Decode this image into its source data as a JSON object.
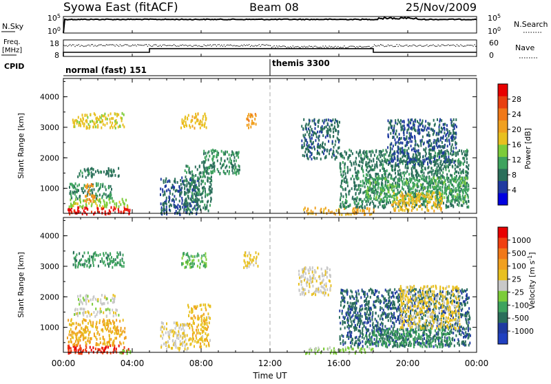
{
  "header": {
    "station": "Syowa East (fitACF)",
    "beam": "Beam 08",
    "date": "25/Nov/2009"
  },
  "status_panels": {
    "nsky_label": "N.Sky",
    "nsky_ticks": [
      "10^5",
      "10^0"
    ],
    "nsearch_label": "N.Search",
    "nsearch_ticks": [
      "10^5",
      "10^0"
    ],
    "freq_label_line1": "Freq.",
    "freq_label_line2": "[MHz]",
    "freq_ticks": [
      "18",
      "8"
    ],
    "nave_label": "Nave",
    "nave_ticks": [
      "60",
      "0"
    ],
    "cpid_label": "CPID",
    "cpid_segments": [
      {
        "label": "normal (fast) 151",
        "start_hour": 0,
        "end_hour": 12
      },
      {
        "label": "themis 3300",
        "start_hour": 12,
        "end_hour": 24
      }
    ],
    "freq_steps": [
      {
        "start_hour": 0,
        "end_hour": 5,
        "mhz": 10.5
      },
      {
        "start_hour": 5,
        "end_hour": 18,
        "mhz": 12.7
      },
      {
        "start_hour": 18,
        "end_hour": 24,
        "mhz": 10.5
      }
    ]
  },
  "power_colorbar": {
    "label": "Power [dB]",
    "ticks": [
      "28",
      "24",
      "20",
      "16",
      "12",
      "8",
      "4"
    ],
    "colors": [
      "#0000e0",
      "#1f3aa0",
      "#2a6e5a",
      "#3ea35e",
      "#7ccc3a",
      "#e8c020",
      "#f0a020",
      "#f07818",
      "#e84010",
      "#e80000"
    ]
  },
  "velocity_colorbar": {
    "label": "Velocity [m s^-1]",
    "ticks": [
      "1000",
      "500",
      "100",
      "25",
      "-25",
      "-100",
      "-500",
      "-1000"
    ],
    "colors": [
      "#e80000",
      "#f04010",
      "#f07818",
      "#f0a020",
      "#e8c020",
      "#c8c8c8",
      "#7ccc3a",
      "#3ea35e",
      "#2a6e5a",
      "#1f3aa0",
      "#2040c0"
    ]
  },
  "axes": {
    "ylabel": "Slant Range [km]",
    "yticks": [
      "4000",
      "3000",
      "2000",
      "1000"
    ],
    "xticks": [
      "00:00",
      "04:00",
      "08:00",
      "12:00",
      "16:00",
      "20:00",
      "00:00"
    ],
    "xlabel": "Time UT"
  },
  "chart_data": [
    {
      "type": "heatmap",
      "title": "",
      "ylabel": "Slant Range [km]",
      "xlabel": "",
      "variable": "Power [dB]",
      "xlim": [
        0,
        24
      ],
      "ylim": [
        180,
        4600
      ],
      "zlim": [
        0,
        30
      ],
      "mode_change_hour": 12,
      "patches": [
        {
          "x": [
            0.2,
            3.9
          ],
          "y": [
            180,
            420
          ],
          "value": 28
        },
        {
          "x": [
            0.3,
            3.8
          ],
          "y": [
            420,
            700
          ],
          "value": 14
        },
        {
          "x": [
            0.3,
            2.8
          ],
          "y": [
            700,
            1200
          ],
          "value": 9
        },
        {
          "x": [
            0.8,
            3.2
          ],
          "y": [
            1400,
            1700
          ],
          "value": 8
        },
        {
          "x": [
            1.2,
            1.8
          ],
          "y": [
            600,
            1200
          ],
          "value": 20
        },
        {
          "x": [
            0.5,
            3.5
          ],
          "y": [
            3000,
            3500
          ],
          "value": 16
        },
        {
          "x": [
            5.6,
            7.8
          ],
          "y": [
            180,
            1400
          ],
          "value": 6
        },
        {
          "x": [
            7.0,
            8.6
          ],
          "y": [
            300,
            1800
          ],
          "value": 8
        },
        {
          "x": [
            8.0,
            10.2
          ],
          "y": [
            1500,
            2300
          ],
          "value": 9
        },
        {
          "x": [
            6.8,
            8.3
          ],
          "y": [
            3000,
            3500
          ],
          "value": 17
        },
        {
          "x": [
            10.6,
            11.2
          ],
          "y": [
            3000,
            3500
          ],
          "value": 20
        },
        {
          "x": [
            13.8,
            16.0
          ],
          "y": [
            2000,
            3300
          ],
          "value": 7
        },
        {
          "x": [
            13.9,
            18.0
          ],
          "y": [
            180,
            400
          ],
          "value": 19
        },
        {
          "x": [
            16.0,
            23.5
          ],
          "y": [
            400,
            2300
          ],
          "value": 8
        },
        {
          "x": [
            17.5,
            23.5
          ],
          "y": [
            600,
            1400
          ],
          "value": 11
        },
        {
          "x": [
            18.8,
            22.8
          ],
          "y": [
            1800,
            3300
          ],
          "value": 6
        },
        {
          "x": [
            19.0,
            22.0
          ],
          "y": [
            300,
            900
          ],
          "value": 17
        }
      ]
    },
    {
      "type": "heatmap",
      "title": "",
      "ylabel": "Slant Range [km]",
      "xlabel": "Time UT",
      "variable": "Velocity [m s^-1]",
      "xlim": [
        0,
        24
      ],
      "ylim": [
        180,
        4600
      ],
      "zlim": [
        -1000,
        1000
      ],
      "mode_change_hour": 12,
      "patches": [
        {
          "x": [
            0.2,
            3.9
          ],
          "y": [
            180,
            450
          ],
          "value": -800
        },
        {
          "x": [
            0.2,
            3.6
          ],
          "y": [
            450,
            1300
          ],
          "value": -300
        },
        {
          "x": [
            0.6,
            3.2
          ],
          "y": [
            1400,
            1650
          ],
          "value": 0
        },
        {
          "x": [
            0.8,
            3.0
          ],
          "y": [
            1800,
            2100
          ],
          "value": 0
        },
        {
          "x": [
            0.5,
            3.5
          ],
          "y": [
            3000,
            3500
          ],
          "value": 400
        },
        {
          "x": [
            3.2,
            4.3
          ],
          "y": [
            180,
            300
          ],
          "value": 150
        },
        {
          "x": [
            5.6,
            7.2
          ],
          "y": [
            300,
            1200
          ],
          "value": -80
        },
        {
          "x": [
            7.2,
            8.5
          ],
          "y": [
            400,
            1800
          ],
          "value": -200
        },
        {
          "x": [
            6.8,
            8.3
          ],
          "y": [
            3000,
            3500
          ],
          "value": 300
        },
        {
          "x": [
            10.4,
            11.3
          ],
          "y": [
            3000,
            3500
          ],
          "value": -150
        },
        {
          "x": [
            13.6,
            15.5
          ],
          "y": [
            2100,
            3000
          ],
          "value": -60
        },
        {
          "x": [
            13.9,
            18.0
          ],
          "y": [
            180,
            380
          ],
          "value": 150
        },
        {
          "x": [
            16.0,
            23.6
          ],
          "y": [
            400,
            2300
          ],
          "value": 600
        },
        {
          "x": [
            17.5,
            22.5
          ],
          "y": [
            400,
            1000
          ],
          "value": 400
        },
        {
          "x": [
            19.5,
            23.0
          ],
          "y": [
            1000,
            2400
          ],
          "value": -150
        }
      ]
    }
  ]
}
